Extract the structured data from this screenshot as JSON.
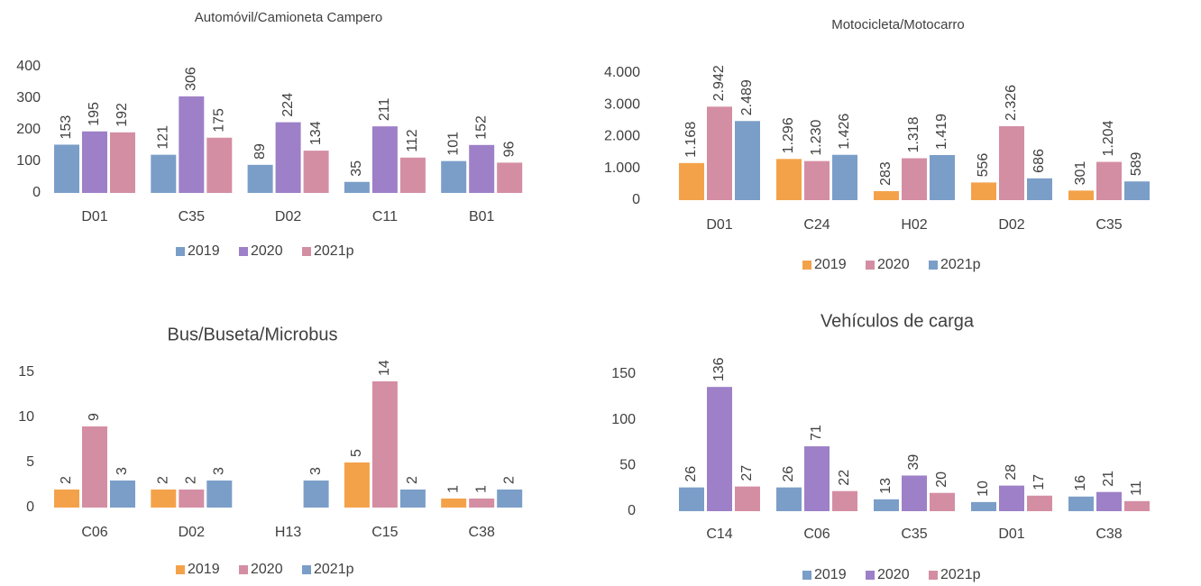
{
  "chart_data": [
    {
      "type": "bar",
      "title": "Automóvil/Camioneta Campero",
      "categories": [
        "D01",
        "C35",
        "D02",
        "C11",
        "B01"
      ],
      "series": [
        {
          "name": "2019",
          "color": "#7b9ec8",
          "values": [
            153,
            121,
            89,
            35,
            101
          ]
        },
        {
          "name": "2020",
          "color": "#9d80c7",
          "values": [
            195,
            306,
            224,
            211,
            152
          ]
        },
        {
          "name": "2021p",
          "color": "#d48ea3",
          "values": [
            192,
            175,
            134,
            112,
            96
          ]
        }
      ],
      "ylim": [
        0,
        400
      ],
      "yticks": [
        0,
        100,
        200,
        300,
        400
      ]
    },
    {
      "type": "bar",
      "title": "Motocicleta/Motocarro",
      "categories": [
        "D01",
        "C24",
        "H02",
        "D02",
        "C35"
      ],
      "series": [
        {
          "name": "2019",
          "color": "#f4a24a",
          "values": [
            1168,
            1296,
            283,
            556,
            301
          ],
          "value_labels": [
            "1.168",
            "1.296",
            "283",
            "556",
            "301"
          ]
        },
        {
          "name": "2020",
          "color": "#d48ea3",
          "values": [
            2942,
            1230,
            1318,
            2326,
            1204
          ],
          "value_labels": [
            "2.942",
            "1.230",
            "1.318",
            "2.326",
            "1.204"
          ]
        },
        {
          "name": "2021p",
          "color": "#7b9ec8",
          "values": [
            2489,
            1426,
            1419,
            686,
            589
          ],
          "value_labels": [
            "2.489",
            "1.426",
            "1.419",
            "686",
            "589"
          ]
        }
      ],
      "ylim": [
        0,
        4000
      ],
      "yticks": [
        0,
        {
          "value": 1000,
          "label": "1.000"
        },
        {
          "value": 2000,
          "label": "2.000"
        },
        {
          "value": 3000,
          "label": "3.000"
        },
        {
          "value": 4000,
          "label": "4.000"
        }
      ]
    },
    {
      "type": "bar",
      "title": "Bus/Buseta/Microbus",
      "categories": [
        "C06",
        "D02",
        "H13",
        "C15",
        "C38"
      ],
      "series": [
        {
          "name": "2019",
          "color": "#f4a24a",
          "values": [
            2,
            2,
            null,
            5,
            1
          ]
        },
        {
          "name": "2020",
          "color": "#d48ea3",
          "values": [
            9,
            2,
            null,
            14,
            1
          ]
        },
        {
          "name": "2021p",
          "color": "#7b9ec8",
          "values": [
            3,
            3,
            3,
            2,
            2
          ]
        }
      ],
      "ylim": [
        0,
        15
      ],
      "yticks": [
        0,
        5,
        10,
        15
      ]
    },
    {
      "type": "bar",
      "title": "Vehículos de carga",
      "categories": [
        "C14",
        "C06",
        "C35",
        "D01",
        "C38"
      ],
      "series": [
        {
          "name": "2019",
          "color": "#7b9ec8",
          "values": [
            26,
            26,
            13,
            10,
            16
          ]
        },
        {
          "name": "2020",
          "color": "#9d80c7",
          "values": [
            136,
            71,
            39,
            28,
            21
          ]
        },
        {
          "name": "2021p",
          "color": "#d48ea3",
          "values": [
            27,
            22,
            20,
            17,
            11
          ]
        }
      ],
      "ylim": [
        0,
        150
      ],
      "yticks": [
        0,
        50,
        100,
        150
      ]
    }
  ]
}
